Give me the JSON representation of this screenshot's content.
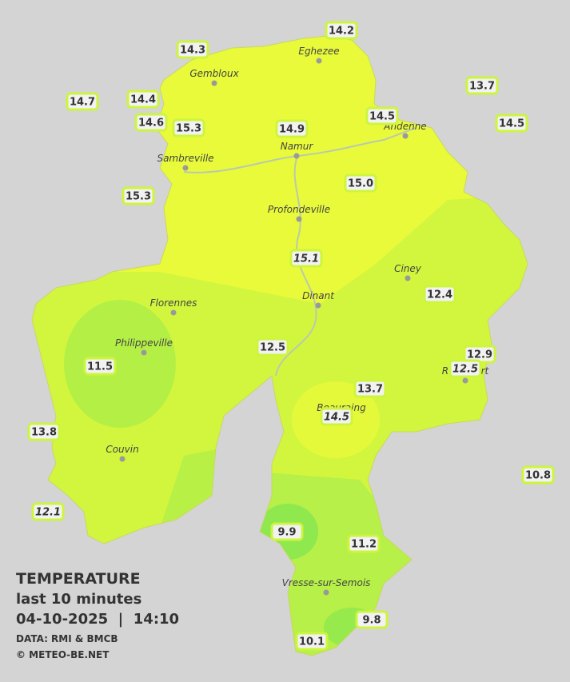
{
  "legend": {
    "title": "TEMPERATURE",
    "period": "last 10 minutes",
    "timestamp": "04-10-2025  |  14:10",
    "source": "DATA: RMI & BMCB",
    "copyright": "© METEO-BE.NET"
  },
  "cities": [
    "Eghezee",
    "Gembloux",
    "Andenne",
    "Namur",
    "Sambreville",
    "Profondeville",
    "Ciney",
    "Dinant",
    "Florennes",
    "Philippeville",
    "Rochefort",
    "Beauraing",
    "Couvin",
    "Vresse-sur-Semois"
  ],
  "stations": [
    "14.2",
    "14.3",
    "14.7",
    "14.4",
    "14.6",
    "15.3",
    "14.9",
    "14.5",
    "13.7",
    "14.5",
    "15.3",
    "15.0",
    "15.1",
    "12.4",
    "12.5",
    "11.5",
    "12.9",
    "12.5",
    "13.7",
    "14.5",
    "13.8",
    "10.8",
    "12.1",
    "9.9",
    "11.2",
    "9.8",
    "10.1"
  ]
}
